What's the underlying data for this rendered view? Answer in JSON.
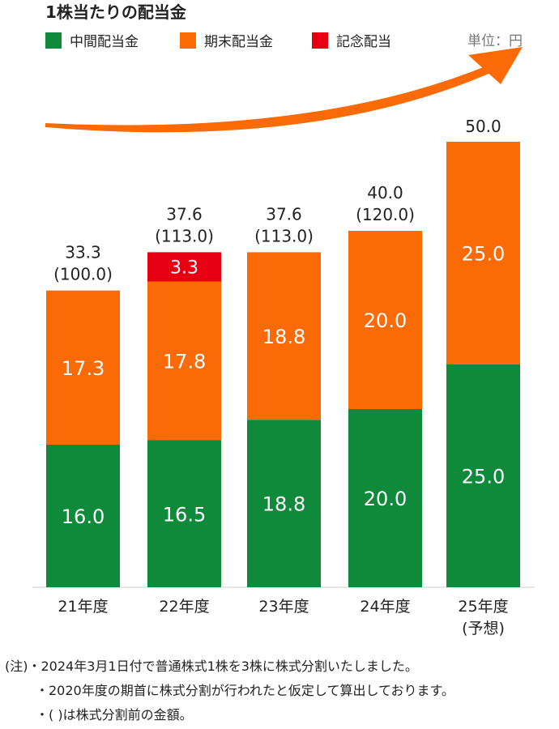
{
  "chart_data": {
    "type": "bar",
    "stacked": true,
    "title": "1株当たりの配当金",
    "unit": "単位：円",
    "ylim": [
      0,
      55
    ],
    "grid": false,
    "legend_position": "top",
    "categories": [
      "21年度",
      "22年度",
      "23年度",
      "24年度",
      "25年度"
    ],
    "category_sub": [
      "",
      "",
      "",
      "",
      "(予想)"
    ],
    "series": [
      {
        "name": "中間配当金",
        "color": "#0e8a3a",
        "values": [
          16.0,
          16.5,
          18.8,
          20.0,
          25.0
        ],
        "labels": [
          "16.0",
          "16.5",
          "18.8",
          "20.0",
          "25.0"
        ]
      },
      {
        "name": "期末配当金",
        "color": "#fa6a06",
        "values": [
          17.3,
          17.8,
          18.8,
          20.0,
          25.0
        ],
        "labels": [
          "17.3",
          "17.8",
          "18.8",
          "20.0",
          "25.0"
        ]
      },
      {
        "name": "記念配当",
        "color": "#e60012",
        "values": [
          0,
          3.3,
          0,
          0,
          0
        ],
        "labels": [
          "",
          "3.3",
          "",
          "",
          ""
        ]
      }
    ],
    "totals": [
      "33.3",
      "37.6",
      "37.6",
      "40.0",
      "50.0"
    ],
    "totals_pre_split": [
      "(100.0)",
      "(113.0)",
      "(113.0)",
      "(120.0)",
      ""
    ],
    "trend_arrow_color": "#fa6a06"
  },
  "notes": [
    "(注)・2024年3月1日付で普通株式1株を3株に株式分割いたしました。",
    "・2020年度の期首に株式分割が行われたと仮定して算出しております。",
    "・( )は株式分割前の金額。"
  ]
}
